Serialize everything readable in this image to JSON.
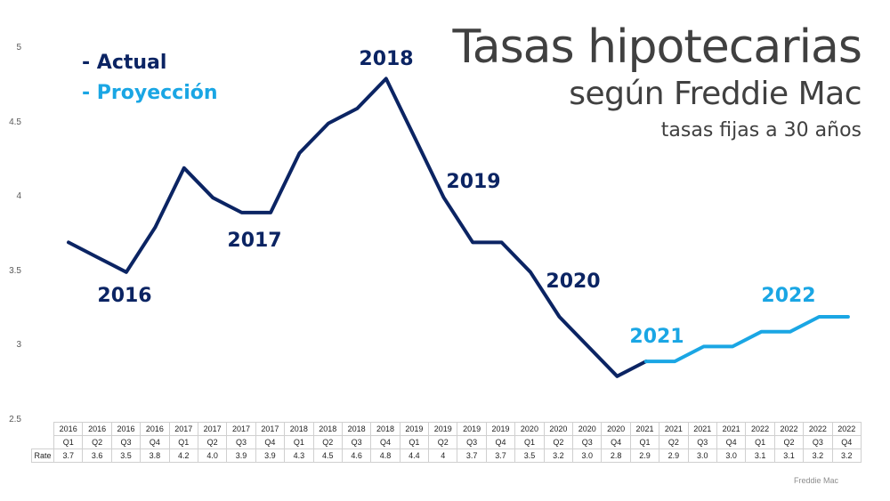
{
  "title": {
    "main": "Tasas hipotecarias",
    "sub": "según Freddie Mac",
    "note": "tasas fijas a 30 años"
  },
  "legend": {
    "actual": "- Actual",
    "projection": "- Proyección"
  },
  "colors": {
    "actual": "#0b2463",
    "projection": "#1aa6e4",
    "title": "#404040"
  },
  "y_axis": {
    "ticks": [
      "5",
      "4.5",
      "4",
      "3.5",
      "3",
      "2.5"
    ]
  },
  "year_labels": [
    {
      "text": "2016",
      "series": "actual"
    },
    {
      "text": "2017",
      "series": "actual"
    },
    {
      "text": "2018",
      "series": "actual"
    },
    {
      "text": "2019",
      "series": "actual"
    },
    {
      "text": "2020",
      "series": "actual"
    },
    {
      "text": "2021",
      "series": "projection"
    },
    {
      "text": "2022",
      "series": "projection"
    }
  ],
  "table": {
    "row_label": "Rate",
    "columns": [
      {
        "year": "2016",
        "q": "Q1",
        "rate": "3.7"
      },
      {
        "year": "2016",
        "q": "Q2",
        "rate": "3.6"
      },
      {
        "year": "2016",
        "q": "Q3",
        "rate": "3.5"
      },
      {
        "year": "2016",
        "q": "Q4",
        "rate": "3.8"
      },
      {
        "year": "2017",
        "q": "Q1",
        "rate": "4.2"
      },
      {
        "year": "2017",
        "q": "Q2",
        "rate": "4.0"
      },
      {
        "year": "2017",
        "q": "Q3",
        "rate": "3.9"
      },
      {
        "year": "2017",
        "q": "Q4",
        "rate": "3.9"
      },
      {
        "year": "2018",
        "q": "Q1",
        "rate": "4.3"
      },
      {
        "year": "2018",
        "q": "Q2",
        "rate": "4.5"
      },
      {
        "year": "2018",
        "q": "Q3",
        "rate": "4.6"
      },
      {
        "year": "2018",
        "q": "Q4",
        "rate": "4.8"
      },
      {
        "year": "2019",
        "q": "Q1",
        "rate": "4.4"
      },
      {
        "year": "2019",
        "q": "Q2",
        "rate": "4"
      },
      {
        "year": "2019",
        "q": "Q3",
        "rate": "3.7"
      },
      {
        "year": "2019",
        "q": "Q4",
        "rate": "3.7"
      },
      {
        "year": "2020",
        "q": "Q1",
        "rate": "3.5"
      },
      {
        "year": "2020",
        "q": "Q2",
        "rate": "3.2"
      },
      {
        "year": "2020",
        "q": "Q3",
        "rate": "3.0"
      },
      {
        "year": "2020",
        "q": "Q4",
        "rate": "2.8"
      },
      {
        "year": "2021",
        "q": "Q1",
        "rate": "2.9"
      },
      {
        "year": "2021",
        "q": "Q2",
        "rate": "2.9"
      },
      {
        "year": "2021",
        "q": "Q3",
        "rate": "3.0"
      },
      {
        "year": "2021",
        "q": "Q4",
        "rate": "3.0"
      },
      {
        "year": "2022",
        "q": "Q1",
        "rate": "3.1"
      },
      {
        "year": "2022",
        "q": "Q2",
        "rate": "3.1"
      },
      {
        "year": "2022",
        "q": "Q3",
        "rate": "3.2"
      },
      {
        "year": "2022",
        "q": "Q4",
        "rate": "3.2"
      }
    ]
  },
  "source": "Freddie Mac",
  "chart_data": {
    "type": "line",
    "title": "Tasas hipotecarias según Freddie Mac",
    "subtitle": "tasas fijas a 30 años",
    "xlabel": "",
    "ylabel": "",
    "ylim": [
      2.5,
      5
    ],
    "yticks": [
      2.5,
      3,
      3.5,
      4,
      4.5,
      5
    ],
    "grid": false,
    "legend_position": "top-left",
    "categories": [
      "2016 Q1",
      "2016 Q2",
      "2016 Q3",
      "2016 Q4",
      "2017 Q1",
      "2017 Q2",
      "2017 Q3",
      "2017 Q4",
      "2018 Q1",
      "2018 Q2",
      "2018 Q3",
      "2018 Q4",
      "2019 Q1",
      "2019 Q2",
      "2019 Q3",
      "2019 Q4",
      "2020 Q1",
      "2020 Q2",
      "2020 Q3",
      "2020 Q4",
      "2021 Q1",
      "2021 Q2",
      "2021 Q3",
      "2021 Q4",
      "2022 Q1",
      "2022 Q2",
      "2022 Q3",
      "2022 Q4"
    ],
    "series": [
      {
        "name": "Actual",
        "color": "#0b2463",
        "values": [
          3.7,
          3.6,
          3.5,
          3.8,
          4.2,
          4.0,
          3.9,
          3.9,
          4.3,
          4.5,
          4.6,
          4.8,
          4.4,
          4.0,
          3.7,
          3.7,
          3.5,
          3.2,
          3.0,
          2.8,
          2.9,
          null,
          null,
          null,
          null,
          null,
          null,
          null
        ]
      },
      {
        "name": "Proyección",
        "color": "#1aa6e4",
        "values": [
          null,
          null,
          null,
          null,
          null,
          null,
          null,
          null,
          null,
          null,
          null,
          null,
          null,
          null,
          null,
          null,
          null,
          null,
          null,
          null,
          2.9,
          2.9,
          3.0,
          3.0,
          3.1,
          3.1,
          3.2,
          3.2
        ]
      }
    ],
    "annotations": [
      "2016",
      "2017",
      "2018",
      "2019",
      "2020",
      "2021",
      "2022"
    ],
    "source": "Freddie Mac"
  }
}
